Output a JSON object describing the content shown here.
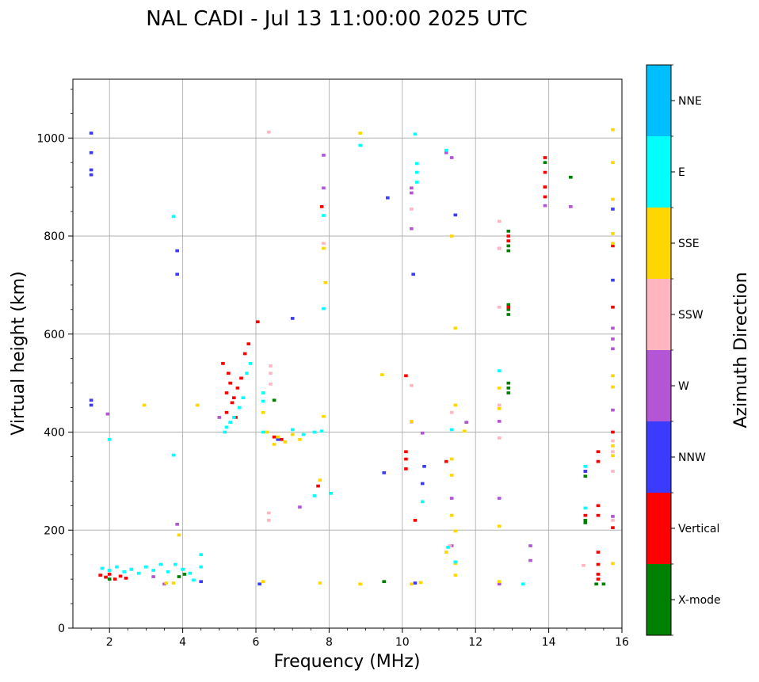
{
  "chart_data": {
    "type": "scatter",
    "title": "NAL CADI - Jul 13 11:00:00 2025 UTC",
    "xlabel": "Frequency (MHz)",
    "ylabel": "Virtual height (km)",
    "xlim": [
      1,
      16
    ],
    "ylim": [
      0,
      1120
    ],
    "xticks": [
      2,
      4,
      6,
      8,
      10,
      12,
      14,
      16
    ],
    "yticks": [
      0,
      200,
      400,
      600,
      800,
      1000
    ],
    "grid": true,
    "colorbar": {
      "label": "Azimuth Direction",
      "categories": [
        "X-mode",
        "Vertical",
        "NNW",
        "W",
        "SSW",
        "SSE",
        "E",
        "NNE"
      ],
      "colors": [
        "#008000",
        "#ff0000",
        "#3b3bff",
        "#b455d6",
        "#ffb6c1",
        "#ffd700",
        "#00ffff",
        "#00bfff"
      ]
    },
    "series": [
      {
        "name": "X-mode",
        "points": [
          [
            3.9,
            105
          ],
          [
            4.05,
            110
          ],
          [
            9.5,
            95
          ],
          [
            12.9,
            790
          ],
          [
            12.9,
            780
          ],
          [
            12.9,
            810
          ],
          [
            12.9,
            770
          ],
          [
            12.9,
            650
          ],
          [
            12.9,
            640
          ],
          [
            12.9,
            660
          ],
          [
            12.9,
            500
          ],
          [
            12.9,
            490
          ],
          [
            12.9,
            480
          ],
          [
            13.9,
            950
          ],
          [
            13.9,
            900
          ],
          [
            14.6,
            920
          ],
          [
            15.0,
            310
          ],
          [
            15.0,
            215
          ],
          [
            15.0,
            220
          ],
          [
            15.3,
            90
          ],
          [
            15.5,
            90
          ],
          [
            6.5,
            465
          ],
          [
            2.0,
            100
          ]
        ]
      },
      {
        "name": "Vertical",
        "points": [
          [
            1.75,
            108
          ],
          [
            1.9,
            104
          ],
          [
            2.0,
            110
          ],
          [
            2.15,
            100
          ],
          [
            2.3,
            106
          ],
          [
            2.45,
            102
          ],
          [
            5.2,
            480
          ],
          [
            5.3,
            500
          ],
          [
            5.4,
            470
          ],
          [
            5.25,
            520
          ],
          [
            5.1,
            540
          ],
          [
            5.5,
            490
          ],
          [
            5.6,
            510
          ],
          [
            5.35,
            460
          ],
          [
            5.2,
            440
          ],
          [
            5.45,
            430
          ],
          [
            5.7,
            560
          ],
          [
            5.8,
            580
          ],
          [
            6.05,
            625
          ],
          [
            6.5,
            390
          ],
          [
            6.7,
            385
          ],
          [
            7.8,
            860
          ],
          [
            7.7,
            290
          ],
          [
            10.1,
            360
          ],
          [
            10.1,
            345
          ],
          [
            10.1,
            325
          ],
          [
            10.1,
            515
          ],
          [
            10.35,
            220
          ],
          [
            11.2,
            340
          ],
          [
            12.9,
            800
          ],
          [
            12.9,
            790
          ],
          [
            13.9,
            960
          ],
          [
            13.9,
            930
          ],
          [
            13.9,
            900
          ],
          [
            13.9,
            880
          ],
          [
            15.35,
            360
          ],
          [
            15.35,
            340
          ],
          [
            15.35,
            250
          ],
          [
            15.35,
            230
          ],
          [
            15.35,
            155
          ],
          [
            15.35,
            130
          ],
          [
            15.35,
            110
          ],
          [
            15.35,
            100
          ],
          [
            15.0,
            320
          ],
          [
            15.0,
            230
          ],
          [
            15.75,
            655
          ],
          [
            15.75,
            780
          ],
          [
            15.75,
            400
          ],
          [
            15.75,
            205
          ],
          [
            12.9,
            655
          ]
        ]
      },
      {
        "name": "NNW",
        "points": [
          [
            1.5,
            1010
          ],
          [
            1.5,
            970
          ],
          [
            1.5,
            935
          ],
          [
            1.5,
            925
          ],
          [
            1.5,
            465
          ],
          [
            1.5,
            455
          ],
          [
            3.85,
            770
          ],
          [
            3.85,
            722
          ],
          [
            6.1,
            90
          ],
          [
            6.6,
            385
          ],
          [
            7.0,
            632
          ],
          [
            9.6,
            878
          ],
          [
            9.5,
            317
          ],
          [
            10.3,
            722
          ],
          [
            10.55,
            295
          ],
          [
            10.6,
            330
          ],
          [
            10.35,
            92
          ],
          [
            11.45,
            843
          ],
          [
            15.75,
            710
          ],
          [
            15.0,
            320
          ],
          [
            15.75,
            855
          ],
          [
            4.5,
            95
          ]
        ]
      },
      {
        "name": "W",
        "points": [
          [
            1.95,
            437
          ],
          [
            3.85,
            212
          ],
          [
            5.0,
            430
          ],
          [
            7.85,
            965
          ],
          [
            7.85,
            898
          ],
          [
            7.2,
            247
          ],
          [
            10.25,
            898
          ],
          [
            10.25,
            888
          ],
          [
            10.25,
            815
          ],
          [
            10.55,
            398
          ],
          [
            11.2,
            970
          ],
          [
            11.35,
            960
          ],
          [
            11.35,
            265
          ],
          [
            11.35,
            168
          ],
          [
            11.75,
            420
          ],
          [
            12.65,
            422
          ],
          [
            12.65,
            265
          ],
          [
            12.65,
            90
          ],
          [
            12.65,
            775
          ],
          [
            13.5,
            168
          ],
          [
            13.5,
            138
          ],
          [
            14.6,
            860
          ],
          [
            13.9,
            862
          ],
          [
            15.75,
            612
          ],
          [
            15.75,
            590
          ],
          [
            15.75,
            570
          ],
          [
            15.75,
            228
          ],
          [
            15.75,
            445
          ],
          [
            2.6,
            120
          ],
          [
            3.2,
            105
          ],
          [
            3.5,
            90
          ]
        ]
      },
      {
        "name": "SSW",
        "points": [
          [
            6.35,
            1012
          ],
          [
            6.35,
            235
          ],
          [
            6.35,
            220
          ],
          [
            6.4,
            535
          ],
          [
            6.4,
            520
          ],
          [
            6.4,
            498
          ],
          [
            10.25,
            855
          ],
          [
            10.25,
            495
          ],
          [
            10.25,
            420
          ],
          [
            11.3,
            168
          ],
          [
            11.35,
            440
          ],
          [
            12.65,
            830
          ],
          [
            12.65,
            775
          ],
          [
            12.65,
            655
          ],
          [
            12.65,
            455
          ],
          [
            12.65,
            388
          ],
          [
            14.95,
            128
          ],
          [
            15.75,
            382
          ],
          [
            15.75,
            360
          ],
          [
            15.75,
            320
          ],
          [
            15.75,
            220
          ],
          [
            7.85,
            785
          ]
        ]
      },
      {
        "name": "SSE",
        "points": [
          [
            2.95,
            455
          ],
          [
            4.4,
            455
          ],
          [
            6.2,
            440
          ],
          [
            6.3,
            400
          ],
          [
            6.6,
            390
          ],
          [
            6.8,
            380
          ],
          [
            7.0,
            395
          ],
          [
            7.2,
            385
          ],
          [
            6.5,
            375
          ],
          [
            6.2,
            95
          ],
          [
            7.85,
            775
          ],
          [
            7.9,
            705
          ],
          [
            7.85,
            432
          ],
          [
            7.75,
            302
          ],
          [
            7.75,
            92
          ],
          [
            8.85,
            1010
          ],
          [
            8.85,
            90
          ],
          [
            9.45,
            517
          ],
          [
            10.25,
            422
          ],
          [
            10.25,
            90
          ],
          [
            10.5,
            93
          ],
          [
            11.2,
            155
          ],
          [
            11.35,
            800
          ],
          [
            11.35,
            345
          ],
          [
            11.35,
            312
          ],
          [
            11.35,
            230
          ],
          [
            11.45,
            612
          ],
          [
            11.45,
            455
          ],
          [
            11.45,
            198
          ],
          [
            11.45,
            132
          ],
          [
            11.45,
            108
          ],
          [
            11.7,
            402
          ],
          [
            12.65,
            490
          ],
          [
            12.65,
            448
          ],
          [
            12.65,
            208
          ],
          [
            12.65,
            95
          ],
          [
            15.75,
            1017
          ],
          [
            15.75,
            950
          ],
          [
            15.75,
            875
          ],
          [
            15.75,
            805
          ],
          [
            15.75,
            785
          ],
          [
            15.75,
            515
          ],
          [
            15.75,
            492
          ],
          [
            15.75,
            372
          ],
          [
            15.75,
            352
          ],
          [
            15.75,
            132
          ],
          [
            3.9,
            190
          ],
          [
            3.75,
            92
          ],
          [
            3.55,
            92
          ]
        ]
      },
      {
        "name": "E",
        "points": [
          [
            1.8,
            122
          ],
          [
            2.0,
            118
          ],
          [
            2.2,
            125
          ],
          [
            2.4,
            115
          ],
          [
            2.6,
            120
          ],
          [
            2.8,
            112
          ],
          [
            3.0,
            125
          ],
          [
            3.2,
            118
          ],
          [
            3.4,
            130
          ],
          [
            3.6,
            115
          ],
          [
            3.8,
            130
          ],
          [
            4.0,
            120
          ],
          [
            4.2,
            112
          ],
          [
            4.5,
            125
          ],
          [
            4.5,
            150
          ],
          [
            4.3,
            98
          ],
          [
            2.0,
            385
          ],
          [
            3.75,
            353
          ],
          [
            3.75,
            840
          ],
          [
            5.2,
            410
          ],
          [
            5.3,
            420
          ],
          [
            5.4,
            430
          ],
          [
            5.15,
            400
          ],
          [
            5.55,
            450
          ],
          [
            5.65,
            470
          ],
          [
            5.75,
            520
          ],
          [
            5.85,
            540
          ],
          [
            6.2,
            480
          ],
          [
            6.2,
            463
          ],
          [
            6.2,
            400
          ],
          [
            7.0,
            405
          ],
          [
            7.3,
            395
          ],
          [
            7.6,
            400
          ],
          [
            7.8,
            402
          ],
          [
            7.85,
            842
          ],
          [
            7.85,
            652
          ],
          [
            8.05,
            275
          ],
          [
            7.6,
            270
          ],
          [
            8.85,
            985
          ],
          [
            10.35,
            1008
          ],
          [
            10.4,
            948
          ],
          [
            10.4,
            930
          ],
          [
            10.4,
            910
          ],
          [
            10.55,
            258
          ],
          [
            11.2,
            975
          ],
          [
            11.25,
            165
          ],
          [
            11.35,
            405
          ],
          [
            11.45,
            135
          ],
          [
            12.65,
            525
          ],
          [
            13.3,
            90
          ],
          [
            15.0,
            330
          ],
          [
            15.0,
            245
          ]
        ]
      },
      {
        "name": "NNE",
        "points": []
      }
    ]
  }
}
